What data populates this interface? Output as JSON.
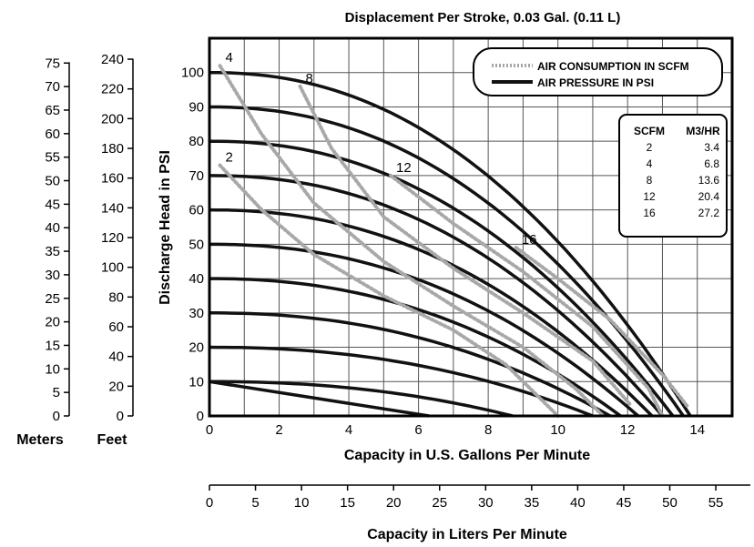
{
  "chart_data": {
    "type": "line",
    "title": "Displacement Per Stroke, 0.03 Gal. (0.11 L)",
    "xlabel": "Capacity in U.S. Gallons Per Minute",
    "x2label": "Capacity in Liters Per Minute",
    "ylabel": "Discharge Head in PSI",
    "xlim": [
      0,
      15
    ],
    "ylim": [
      0,
      110
    ],
    "grid": true,
    "x_ticks": [
      "0",
      "2",
      "4",
      "6",
      "8",
      "10",
      "12",
      "14"
    ],
    "y_ticks": [
      "0",
      "10",
      "20",
      "30",
      "40",
      "50",
      "60",
      "70",
      "80",
      "90",
      "100"
    ],
    "x2_ticks": [
      "0",
      "5",
      "10",
      "15",
      "20",
      "25",
      "30",
      "35",
      "40",
      "45",
      "50",
      "55"
    ],
    "meters_label": "Meters",
    "meters_ticks": [
      "0",
      "5",
      "10",
      "15",
      "20",
      "25",
      "30",
      "35",
      "40",
      "45",
      "50",
      "55",
      "60",
      "65",
      "70",
      "75"
    ],
    "feet_label": "Feet",
    "feet_ticks": [
      "0",
      "20",
      "40",
      "60",
      "80",
      "100",
      "120",
      "140",
      "160",
      "180",
      "200",
      "220",
      "240"
    ],
    "legend": {
      "placement": "top-right",
      "air_consumption": "AIR CONSUMPTION IN SCFM",
      "air_pressure": "AIR PRESSURE IN PSI"
    },
    "conversion_table": {
      "headers": [
        "SCFM",
        "M3/HR"
      ],
      "rows": [
        [
          "2",
          "3.4"
        ],
        [
          "4",
          "6.8"
        ],
        [
          "8",
          "13.6"
        ],
        [
          "12",
          "20.4"
        ],
        [
          "16",
          "27.2"
        ]
      ]
    },
    "air_pressure_series": [
      {
        "max_head": 100,
        "max_flow": 13.8
      },
      {
        "max_head": 90,
        "max_flow": 13.6
      },
      {
        "max_head": 80,
        "max_flow": 13.3
      },
      {
        "max_head": 70,
        "max_flow": 13.0
      },
      {
        "max_head": 60,
        "max_flow": 12.7
      },
      {
        "max_head": 50,
        "max_flow": 12.3
      },
      {
        "max_head": 40,
        "max_flow": 11.8
      },
      {
        "max_head": 30,
        "max_flow": 11.5
      },
      {
        "max_head": 20,
        "max_flow": 11.0
      },
      {
        "max_head": 10,
        "max_flow": 8.7
      },
      {
        "max_head": 0,
        "max_flow": 6.3
      }
    ],
    "air_consumption_series": [
      {
        "name": "2",
        "points": [
          [
            0.3,
            73
          ],
          [
            1.5,
            60
          ],
          [
            3,
            47
          ],
          [
            5,
            35
          ],
          [
            7,
            25
          ],
          [
            8.5,
            15
          ],
          [
            9.5,
            5
          ],
          [
            10,
            0
          ]
        ]
      },
      {
        "name": "4",
        "points": [
          [
            0.3,
            102
          ],
          [
            1.5,
            82
          ],
          [
            3,
            62
          ],
          [
            5,
            45
          ],
          [
            7,
            32
          ],
          [
            9,
            20
          ],
          [
            10.5,
            8
          ],
          [
            11.3,
            0
          ]
        ]
      },
      {
        "name": "8",
        "points": [
          [
            2.6,
            96
          ],
          [
            3.5,
            78
          ],
          [
            5,
            58
          ],
          [
            7,
            43
          ],
          [
            9,
            30
          ],
          [
            11,
            16
          ],
          [
            12.1,
            3
          ]
        ]
      },
      {
        "name": "12",
        "points": [
          [
            5.2,
            70
          ],
          [
            7,
            56
          ],
          [
            9,
            42
          ],
          [
            11,
            26
          ],
          [
            12.6,
            8
          ],
          [
            13,
            0
          ]
        ]
      },
      {
        "name": "16",
        "points": [
          [
            8.8,
            49
          ],
          [
            10,
            40
          ],
          [
            11.5,
            28
          ],
          [
            13,
            12
          ],
          [
            13.7,
            3
          ]
        ]
      }
    ]
  }
}
